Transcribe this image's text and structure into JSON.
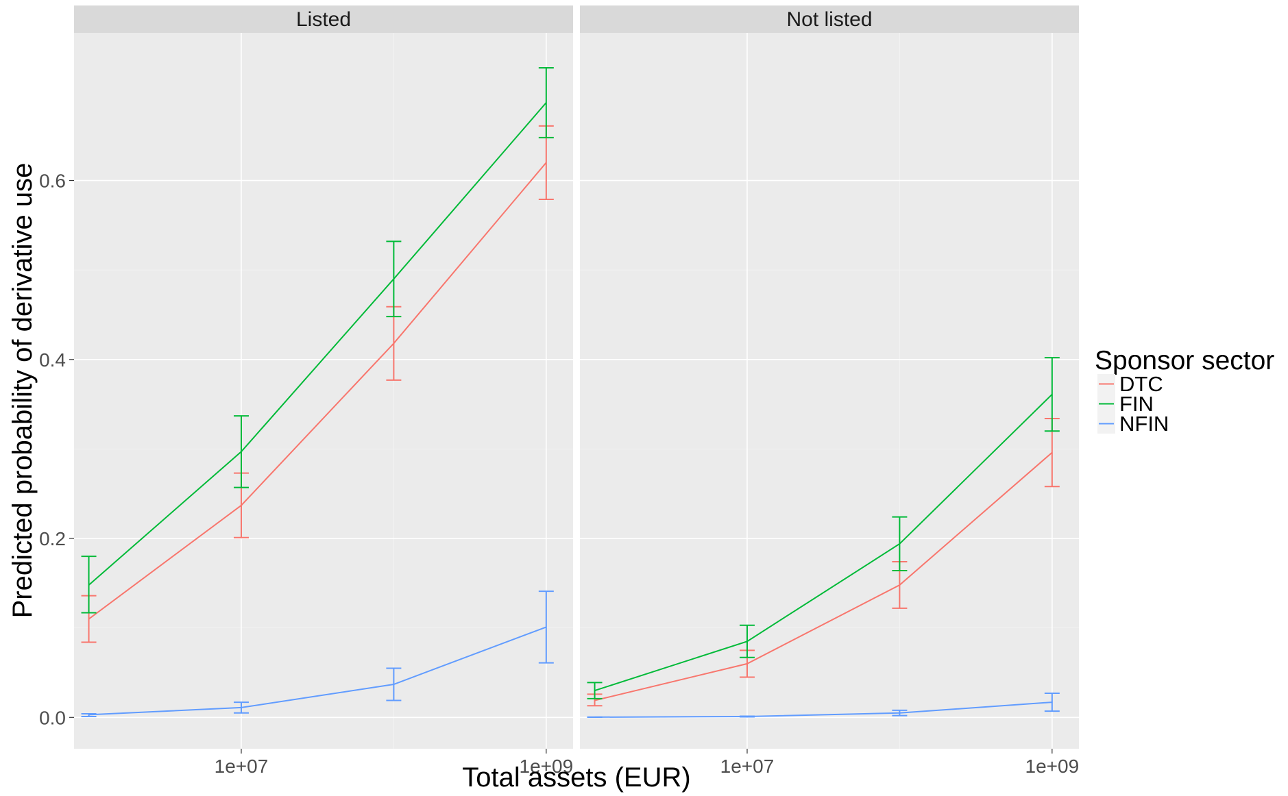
{
  "chart_data": {
    "type": "line",
    "title": "",
    "xlabel": "Total assets (EUR)",
    "ylabel": "Predicted probability of derivative use",
    "x_scale": "log10",
    "xlim": [
      800000,
      1500000000
    ],
    "ylim": [
      -0.035,
      0.765
    ],
    "x_tick_values": [
      10000000,
      1000000000
    ],
    "x_tick_labels": [
      "1e+07",
      "1e+09"
    ],
    "y_tick_values": [
      0.0,
      0.2,
      0.4,
      0.6
    ],
    "y_tick_labels": [
      "0.0",
      "0.2",
      "0.4",
      "0.6"
    ],
    "grid": true,
    "legend_placement": "right",
    "legend": {
      "title": "Sponsor sector"
    },
    "x": [
      1000000,
      10000000,
      100000000,
      1000000000
    ],
    "panels": [
      {
        "name": "Listed",
        "series": [
          {
            "name": "DTC",
            "color": "#F8766D",
            "values": [
              0.11,
              0.237,
              0.418,
              0.62
            ],
            "lower": [
              0.084,
              0.201,
              0.377,
              0.579
            ],
            "upper": [
              0.136,
              0.273,
              0.459,
              0.661
            ]
          },
          {
            "name": "FIN",
            "color": "#00BA38",
            "values": [
              0.148,
              0.297,
              0.49,
              0.687
            ],
            "lower": [
              0.117,
              0.257,
              0.448,
              0.648
            ],
            "upper": [
              0.18,
              0.337,
              0.532,
              0.726
            ]
          },
          {
            "name": "NFIN",
            "color": "#619CFF",
            "values": [
              0.003,
              0.011,
              0.037,
              0.101
            ],
            "lower": [
              0.001,
              0.005,
              0.019,
              0.061
            ],
            "upper": [
              0.004,
              0.017,
              0.055,
              0.141
            ]
          }
        ]
      },
      {
        "name": "Not listed",
        "series": [
          {
            "name": "DTC",
            "color": "#F8766D",
            "values": [
              0.019,
              0.06,
              0.148,
              0.296
            ],
            "lower": [
              0.013,
              0.045,
              0.122,
              0.258
            ],
            "upper": [
              0.026,
              0.075,
              0.174,
              0.334
            ]
          },
          {
            "name": "FIN",
            "color": "#00BA38",
            "values": [
              0.03,
              0.085,
              0.194,
              0.361
            ],
            "lower": [
              0.021,
              0.067,
              0.164,
              0.32
            ],
            "upper": [
              0.039,
              0.103,
              0.224,
              0.402
            ]
          },
          {
            "name": "NFIN",
            "color": "#619CFF",
            "values": [
              0.0003,
              0.001,
              0.005,
              0.017
            ],
            "lower": [
              0.0002,
              0.0006,
              0.002,
              0.007
            ],
            "upper": [
              0.0004,
              0.0014,
              0.008,
              0.027
            ]
          }
        ]
      }
    ]
  }
}
